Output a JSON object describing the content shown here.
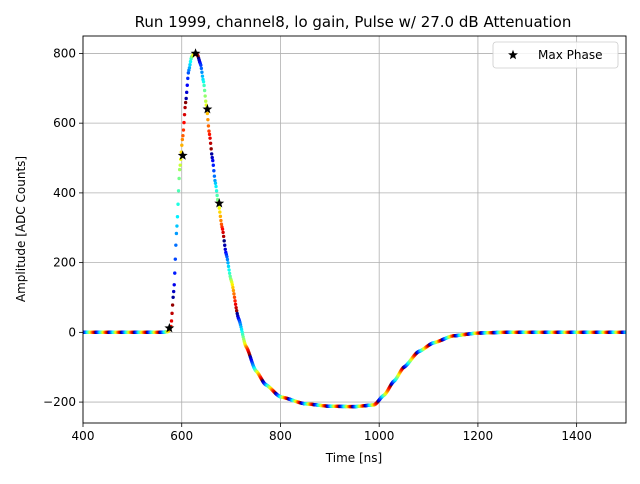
{
  "chart_data": {
    "type": "scatter",
    "title": "Run 1999, channel8, lo gain, Pulse w/ 27.0 dB Attenuation",
    "xlabel": "Time [ns]",
    "ylabel": "Amplitude [ADC Counts]",
    "xlim": [
      400,
      1500
    ],
    "ylim": [
      -260,
      850
    ],
    "xticks": [
      400,
      600,
      800,
      1000,
      1200,
      1400
    ],
    "xtick_labels": [
      "400",
      "600",
      "800",
      "1000",
      "1200",
      "1400"
    ],
    "yticks": [
      -200,
      0,
      200,
      400,
      600,
      800
    ],
    "ytick_labels": [
      "−200",
      "0",
      "200",
      "400",
      "600",
      "800"
    ],
    "grid": true,
    "legend": {
      "position": "top-right",
      "entries": [
        "Max Phase"
      ]
    },
    "colormap": "jet",
    "series": [
      {
        "kind": "waveform",
        "curve": [
          [
            400,
            0
          ],
          [
            560,
            0
          ],
          [
            572,
            2
          ],
          [
            578,
            15
          ],
          [
            584,
            120
          ],
          [
            590,
            300
          ],
          [
            596,
            470
          ],
          [
            602,
            560
          ],
          [
            608,
            660
          ],
          [
            614,
            750
          ],
          [
            620,
            790
          ],
          [
            626,
            800
          ],
          [
            632,
            795
          ],
          [
            638,
            770
          ],
          [
            644,
            720
          ],
          [
            650,
            650
          ],
          [
            656,
            570
          ],
          [
            662,
            500
          ],
          [
            668,
            430
          ],
          [
            674,
            372
          ],
          [
            682,
            300
          ],
          [
            690,
            225
          ],
          [
            700,
            150
          ],
          [
            715,
            40
          ],
          [
            730,
            -40
          ],
          [
            750,
            -110
          ],
          [
            770,
            -150
          ],
          [
            800,
            -185
          ],
          [
            850,
            -205
          ],
          [
            900,
            -212
          ],
          [
            950,
            -213
          ],
          [
            990,
            -208
          ],
          [
            1010,
            -180
          ],
          [
            1030,
            -140
          ],
          [
            1050,
            -100
          ],
          [
            1080,
            -55
          ],
          [
            1110,
            -30
          ],
          [
            1150,
            -10
          ],
          [
            1200,
            -2
          ],
          [
            1250,
            0
          ],
          [
            1500,
            0
          ]
        ]
      },
      {
        "name": "Max Phase",
        "kind": "markers",
        "points": [
          [
            575,
            12
          ],
          [
            602,
            507
          ],
          [
            628,
            800
          ],
          [
            652,
            640
          ],
          [
            676,
            370
          ]
        ]
      }
    ]
  }
}
